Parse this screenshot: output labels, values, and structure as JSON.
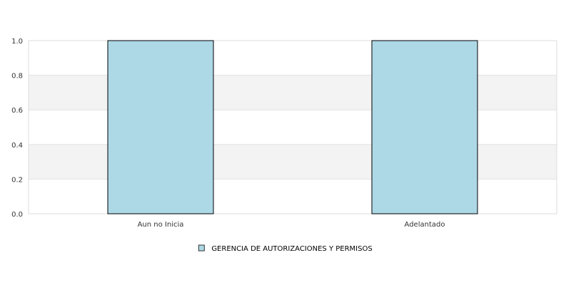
{
  "chart_data": {
    "type": "bar",
    "title": "",
    "xlabel": "",
    "ylabel": "",
    "categories": [
      "Aun no Inicia",
      "Adelantado"
    ],
    "series": [
      {
        "name": "GERENCIA DE AUTORIZACIONES Y PERMISOS",
        "values": [
          1.0,
          1.0
        ],
        "color": "#add8e6"
      }
    ],
    "ylim": [
      0,
      1.0
    ],
    "yticks": [
      "0.0",
      "0.2",
      "0.4",
      "0.6",
      "0.8",
      "1.0"
    ],
    "grid": true,
    "band_colors": [
      "#ffffff",
      "#f3f3f3"
    ],
    "legend_position": "bottom-center"
  }
}
